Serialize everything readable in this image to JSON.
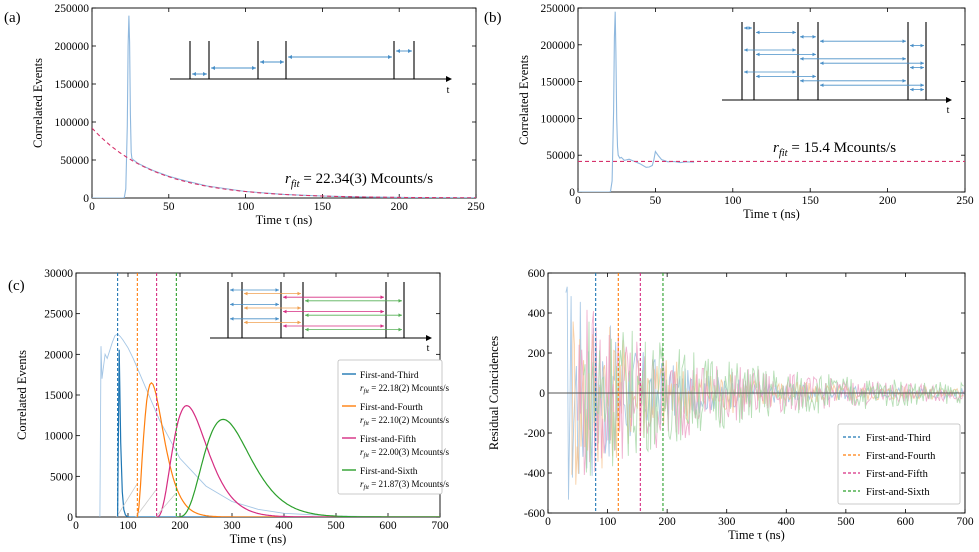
{
  "figure": {
    "panels": [
      {
        "id": "a",
        "label": "(a)",
        "annotation": "= 22.34(3) Mcounts/s"
      },
      {
        "id": "b",
        "label": "(b)",
        "annotation": "= 15.4 Mcounts/s"
      },
      {
        "id": "c",
        "label": "(c)"
      },
      {
        "id": "d",
        "label": ""
      }
    ],
    "rfit_symbol": "r",
    "rfit_sub": "fit",
    "inset_axis_label": "t"
  },
  "chart_data": [
    {
      "id": "a",
      "type": "line",
      "xlabel": "Time τ (ns)",
      "ylabel": "Correlated Events",
      "xlim": [
        0,
        250
      ],
      "ylim": [
        0,
        250000
      ],
      "xticks": [
        0,
        50,
        100,
        150,
        200,
        250
      ],
      "yticks": [
        0,
        50000,
        100000,
        150000,
        200000,
        250000
      ],
      "series": [
        {
          "kind": "data",
          "color": "#8fb8de",
          "x": [
            0,
            20,
            21,
            22,
            23,
            23.5,
            24,
            24.5,
            25,
            25.5,
            26,
            27,
            28,
            30,
            35,
            40,
            50,
            60,
            75,
            100,
            125,
            150,
            175,
            200,
            225,
            250
          ],
          "y": [
            0,
            0,
            500,
            12000,
            95000,
            200000,
            240000,
            205000,
            110000,
            60000,
            52000,
            50000,
            48500,
            45500,
            40500,
            36000,
            28500,
            23000,
            15800,
            8500,
            4700,
            2600,
            1450,
            800,
            450,
            250
          ]
        },
        {
          "kind": "fit",
          "color": "#d6336c",
          "dashed": true,
          "tau": 42,
          "amp": 92000,
          "x0": 0,
          "x1": 250
        }
      ]
    },
    {
      "id": "b",
      "type": "line",
      "xlabel": "Time τ (ns)",
      "ylabel": "Correlated Events",
      "xlim": [
        0,
        250
      ],
      "ylim": [
        0,
        250000
      ],
      "xticks": [
        0,
        50,
        100,
        150,
        200,
        250
      ],
      "yticks": [
        0,
        50000,
        100000,
        150000,
        200000,
        250000
      ],
      "series": [
        {
          "kind": "data",
          "color": "#8fb8de",
          "x": [
            0,
            20,
            21,
            22,
            23,
            23.5,
            24,
            24.5,
            25,
            25.5,
            26,
            27,
            28,
            30,
            33,
            36,
            40,
            44,
            46,
            48,
            49,
            50,
            52,
            54,
            56,
            58,
            62,
            66,
            70,
            75
          ],
          "y": [
            0,
            0,
            500,
            15000,
            110000,
            210000,
            245000,
            190000,
            100000,
            62000,
            50000,
            46000,
            47000,
            43000,
            44500,
            42000,
            38500,
            33500,
            34000,
            36000,
            44000,
            55000,
            49000,
            44000,
            42500,
            41000,
            41500,
            40000,
            41000,
            40500
          ]
        },
        {
          "kind": "const",
          "color": "#d6336c",
          "dashed": true,
          "y": 41500,
          "x0": 0,
          "x1": 250
        }
      ]
    },
    {
      "id": "c",
      "type": "line",
      "xlabel": "Time τ (ns)",
      "ylabel": "Correlated Events",
      "xlim": [
        0,
        700
      ],
      "ylim": [
        0,
        30000
      ],
      "xticks": [
        0,
        100,
        200,
        300,
        400,
        500,
        600,
        700
      ],
      "yticks": [
        0,
        5000,
        10000,
        15000,
        20000,
        25000,
        30000
      ],
      "legend": {
        "placement": "right",
        "entries": [
          {
            "name": "First-and-Third",
            "rate": "= 22.18(2) Mcounts/s",
            "color": "#1f77b4"
          },
          {
            "name": "First-and-Fourth",
            "rate": "= 22.10(2) Mcounts/s",
            "color": "#ff7f0e"
          },
          {
            "name": "First-and-Fifth",
            "rate": "= 22.00(3) Mcounts/s",
            "color": "#d62d82"
          },
          {
            "name": "First-and-Sixth",
            "rate": "= 21.87(3) Mcounts/s",
            "color": "#2ca02c"
          }
        ]
      },
      "vlines": [
        {
          "x": 80,
          "color": "#1f77b4"
        },
        {
          "x": 118,
          "color": "#ff7f0e"
        },
        {
          "x": 155,
          "color": "#d62d82"
        },
        {
          "x": 193,
          "color": "#2ca02c"
        }
      ],
      "curves": [
        {
          "color": "#1f77b4",
          "peak_x": 82,
          "peak_y": 22600,
          "shape": 2,
          "x0": 80
        },
        {
          "color": "#ff7f0e",
          "peak_x": 145,
          "peak_y": 16500,
          "shape": 3,
          "x0": 118
        },
        {
          "color": "#d62d82",
          "peak_x": 213,
          "peak_y": 13700,
          "shape": 4,
          "x0": 155
        },
        {
          "color": "#2ca02c",
          "peak_x": 283,
          "peak_y": 12000,
          "shape": 5,
          "x0": 193
        }
      ],
      "raw_series": [
        {
          "color": "#8fb8de",
          "x": [
            46,
            48,
            50,
            52,
            56,
            60,
            65,
            70,
            75,
            80,
            85,
            90,
            100,
            110,
            120,
            140,
            160,
            200,
            250,
            300,
            350,
            400,
            500,
            600,
            700
          ],
          "y": [
            0,
            21000,
            17000,
            18000,
            20000,
            19500,
            20500,
            21500,
            22300,
            22500,
            22200,
            21800,
            20800,
            19500,
            18000,
            15000,
            12000,
            7200,
            3800,
            1900,
            950,
            450,
            110,
            30,
            8
          ]
        }
      ]
    },
    {
      "id": "d",
      "type": "line",
      "xlabel": "Time τ (ns)",
      "ylabel": "Residual Coincidences",
      "xlim": [
        0,
        700
      ],
      "ylim": [
        -600,
        600
      ],
      "xticks": [
        0,
        100,
        200,
        300,
        400,
        500,
        600,
        700
      ],
      "yticks": [
        -600,
        -400,
        -200,
        0,
        200,
        400,
        600
      ],
      "legend": {
        "placement": "bottom-right",
        "entries": [
          {
            "name": "First-and-Third",
            "color": "#1f77b4"
          },
          {
            "name": "First-and-Fourth",
            "color": "#ff7f0e"
          },
          {
            "name": "First-and-Fifth",
            "color": "#d62d82"
          },
          {
            "name": "First-and-Sixth",
            "color": "#2ca02c"
          }
        ]
      },
      "vlines": [
        {
          "x": 80,
          "color": "#1f77b4"
        },
        {
          "x": 118,
          "color": "#ff7f0e"
        },
        {
          "x": 155,
          "color": "#d62d82"
        },
        {
          "x": 193,
          "color": "#2ca02c"
        }
      ],
      "residuals": [
        {
          "color": "#8fb8de",
          "start": 30,
          "amp0": 620,
          "decay": 110
        },
        {
          "color": "#f5c08a",
          "start": 40,
          "amp0": 520,
          "decay": 140
        },
        {
          "color": "#eb98c0",
          "start": 50,
          "amp0": 470,
          "decay": 190
        },
        {
          "color": "#9fd49f",
          "start": 60,
          "amp0": 430,
          "decay": 230
        }
      ]
    }
  ]
}
